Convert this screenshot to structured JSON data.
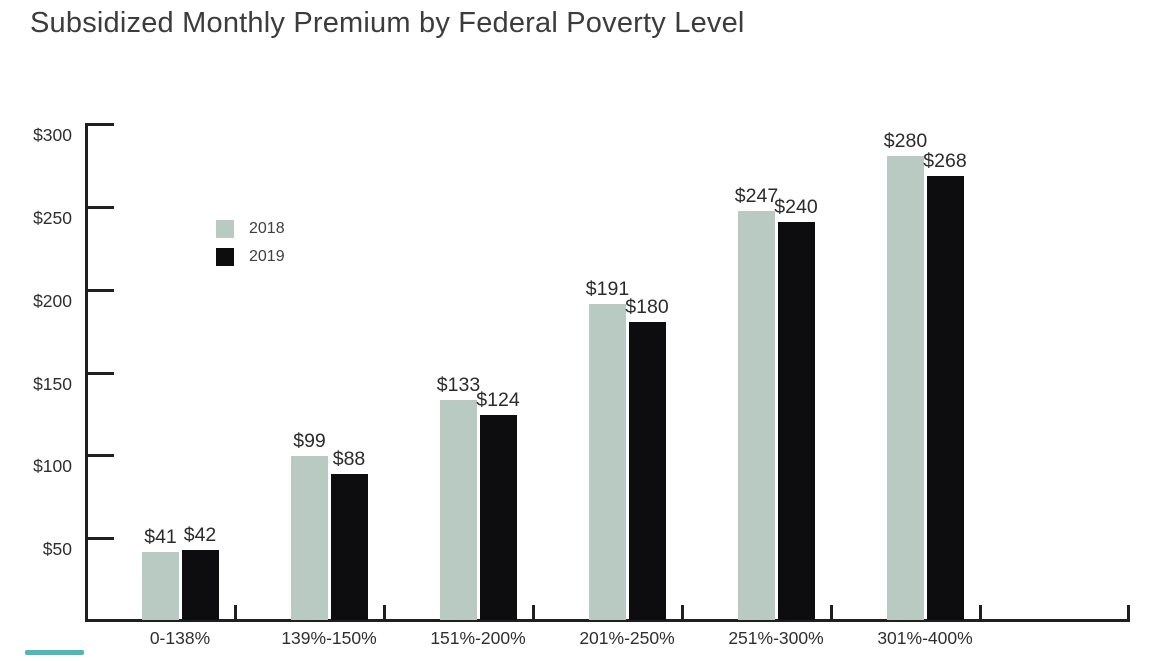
{
  "title": "Subsidized Monthly Premium by Federal Poverty Level",
  "colors": {
    "background": "#ffffff",
    "title_text": "#3c3c3c",
    "axis": "#1f1f1f",
    "tick_label": "#2f2f2f",
    "value_label": "#2b2b2b",
    "series_2018": "#b8cac2",
    "series_2019": "#0d0d0f",
    "legend_text": "#3f3f3f",
    "accent_line": "#4cb8ba"
  },
  "legend": {
    "items": [
      {
        "label": "2018",
        "color": "#b8cac2"
      },
      {
        "label": "2019",
        "color": "#0d0d0f"
      }
    ]
  },
  "chart_data": {
    "type": "bar",
    "title": "Subsidized Monthly Premium by Federal Poverty Level",
    "categories": [
      "0-138%",
      "139%-150%",
      "151%-200%",
      "201%-250%",
      "251%-300%",
      "301%-400%"
    ],
    "series": [
      {
        "name": "2018",
        "color": "#b8cac2",
        "values": [
          41,
          99,
          133,
          191,
          247,
          280
        ],
        "labels": [
          "$41",
          "$99",
          "$133",
          "$191",
          "$247",
          "$280"
        ]
      },
      {
        "name": "2019",
        "color": "#0d0d0f",
        "values": [
          42,
          88,
          124,
          180,
          240,
          268
        ],
        "labels": [
          "$42",
          "$88",
          "$124",
          "$180",
          "$240",
          "$268"
        ]
      }
    ],
    "xlabel": "",
    "ylabel": "",
    "ylim": [
      0,
      300
    ],
    "y_ticks": [
      {
        "value": 300,
        "label": "$300"
      },
      {
        "value": 250,
        "label": "$250"
      },
      {
        "value": 200,
        "label": "$200"
      },
      {
        "value": 150,
        "label": "$150"
      },
      {
        "value": 100,
        "label": "$100"
      },
      {
        "value": 50,
        "label": "$50"
      }
    ],
    "value_prefix": "$",
    "grid": false,
    "legend_position": "inside-upper-left"
  }
}
